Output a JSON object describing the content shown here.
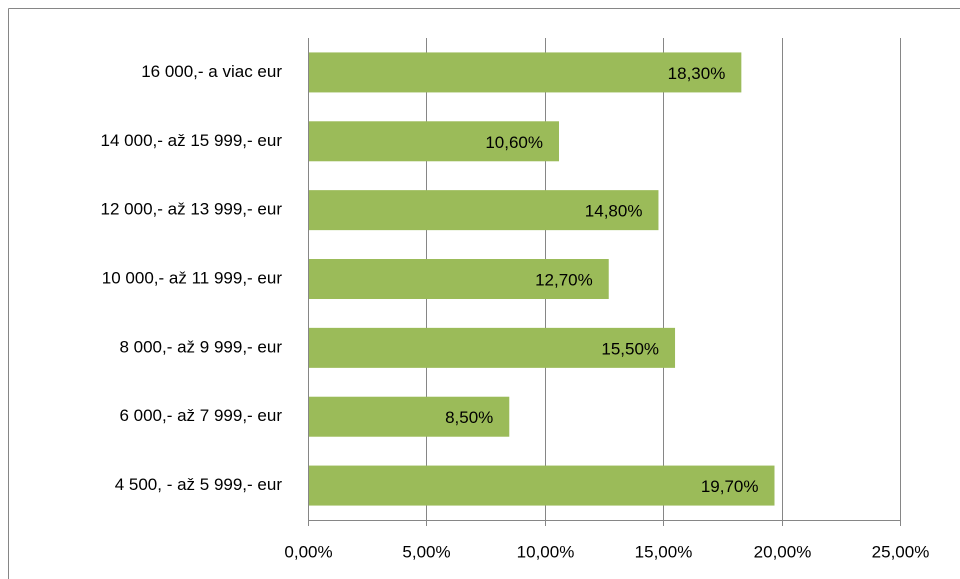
{
  "chart_data": {
    "type": "bar",
    "orientation": "horizontal",
    "categories": [
      "16 000,- a viac eur",
      "14 000,- až 15 999,- eur",
      "12 000,- až 13 999,- eur",
      "10 000,- až 11 999,- eur",
      "8 000,- až 9 999,- eur",
      "6 000,- až 7 999,- eur",
      "4 500, - až 5 999,- eur"
    ],
    "values": [
      18.3,
      10.6,
      14.8,
      12.7,
      15.5,
      8.5,
      19.7
    ],
    "value_labels": [
      "18,30%",
      "10,60%",
      "14,80%",
      "12,70%",
      "15,50%",
      "8,50%",
      "19,70%"
    ],
    "color": "#9bbb59",
    "xlim": [
      0,
      25
    ],
    "xticks": [
      {
        "value": 0,
        "label": "0,00%"
      },
      {
        "value": 5,
        "label": "5,00%"
      },
      {
        "value": 10,
        "label": "10,00%"
      },
      {
        "value": 15,
        "label": "15,00%"
      },
      {
        "value": 20,
        "label": "20,00%"
      },
      {
        "value": 25,
        "label": "25,00%"
      }
    ],
    "grid": true
  }
}
